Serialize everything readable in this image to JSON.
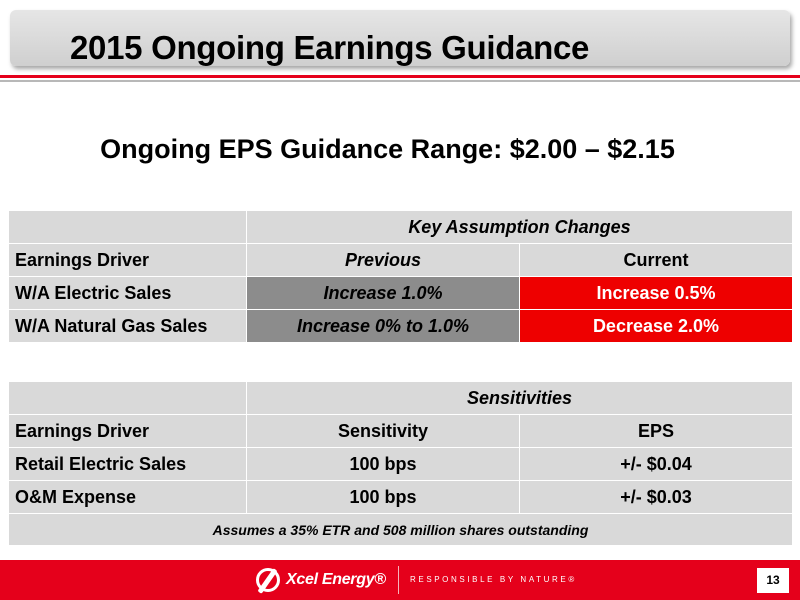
{
  "slide": {
    "title": "2015 Ongoing Earnings Guidance",
    "subtitle": "Ongoing EPS Guidance Range: $2.00 – $2.15",
    "page_number": "13"
  },
  "colors": {
    "accent_red": "#e5001b",
    "cell_gray": "#d9d9d9",
    "previous_gray": "#8c8c8c",
    "current_red": "#ee0000"
  },
  "assumptions_table": {
    "group_header": "Key Assumption Changes",
    "columns": [
      "Earnings Driver",
      "Previous",
      "Current"
    ],
    "rows": [
      {
        "driver": "W/A Electric Sales",
        "previous": "Increase 1.0%",
        "current": "Increase 0.5%"
      },
      {
        "driver": "W/A Natural Gas Sales",
        "previous": "Increase 0% to 1.0%",
        "current": "Decrease 2.0%"
      }
    ]
  },
  "sensitivities_table": {
    "group_header": "Sensitivities",
    "columns": [
      "Earnings Driver",
      "Sensitivity",
      "EPS"
    ],
    "rows": [
      {
        "driver": "Retail Electric Sales",
        "sensitivity": "100 bps",
        "eps": "+/- $0.04"
      },
      {
        "driver": "O&M Expense",
        "sensitivity": "100 bps",
        "eps": "+/- $0.03"
      }
    ],
    "note": "Assumes a 35% ETR and 508 million shares outstanding"
  },
  "footer": {
    "logo_text": "Xcel Energy®",
    "logo_icon": "xcel-swoosh-icon",
    "tagline": "RESPONSIBLE BY NATURE®"
  }
}
